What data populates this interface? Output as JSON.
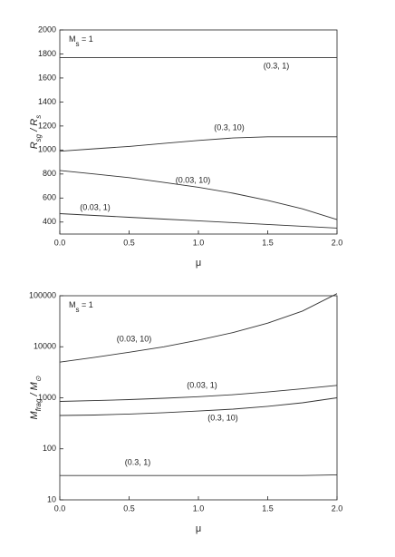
{
  "chart_data": [
    {
      "type": "line",
      "annotation": [
        {
          "text": "M",
          "sub": false
        },
        {
          "text": "s",
          "sub": true
        },
        {
          "text": " = 1",
          "sub": false
        }
      ],
      "ylabel": [
        {
          "text": "R",
          "sub": false
        },
        {
          "text": "sg",
          "sub": true
        },
        {
          "text": " / ",
          "sub": false
        },
        {
          "text": "R",
          "sub": false
        },
        {
          "text": "s",
          "sub": true
        }
      ],
      "xlabel": "μ",
      "x": [
        0,
        0.25,
        0.5,
        0.75,
        1.0,
        1.25,
        1.5,
        1.75,
        2.0
      ],
      "xlim": [
        0,
        2
      ],
      "xticks": [
        {
          "value": 0,
          "label": "0.0"
        },
        0.5,
        {
          "value": 1,
          "label": "1.0"
        },
        1.5,
        {
          "value": 2,
          "label": "2.0"
        }
      ],
      "ylim": [
        300,
        2000
      ],
      "yticks": [
        400,
        600,
        800,
        1000,
        1200,
        1400,
        1600,
        1800,
        2000
      ],
      "log_y": false,
      "series": [
        {
          "name": "(0.3, 1)",
          "color": "#333333",
          "values": [
            1770,
            1770,
            1770,
            1770,
            1770,
            1770,
            1770,
            1770,
            1770
          ]
        },
        {
          "name": "(0.3, 10)",
          "color": "#333333",
          "values": [
            990,
            1010,
            1030,
            1055,
            1080,
            1100,
            1110,
            1110,
            1110
          ]
        },
        {
          "name": "(0.03, 10)",
          "color": "#333333",
          "values": [
            830,
            800,
            770,
            730,
            690,
            640,
            580,
            510,
            420
          ]
        },
        {
          "name": "(0.03, 1)",
          "color": "#333333",
          "values": [
            470,
            455,
            440,
            425,
            410,
            395,
            380,
            365,
            350
          ]
        }
      ]
    },
    {
      "type": "line",
      "annotation": [
        {
          "text": "M",
          "sub": false
        },
        {
          "text": "s",
          "sub": true
        },
        {
          "text": " = 1",
          "sub": false
        }
      ],
      "ylabel": [
        {
          "text": "M",
          "sub": false
        },
        {
          "text": "frag",
          "sub": true
        },
        {
          "text": " / ",
          "sub": false
        },
        {
          "text": "M",
          "sub": false
        },
        {
          "text": "⊙",
          "sub": true
        }
      ],
      "xlabel": "μ",
      "x": [
        0,
        0.25,
        0.5,
        0.75,
        1.0,
        1.25,
        1.5,
        1.75,
        2.0
      ],
      "xlim": [
        0,
        2
      ],
      "xticks": [
        {
          "value": 0,
          "label": "0.0"
        },
        0.5,
        {
          "value": 1,
          "label": "1.0"
        },
        1.5,
        {
          "value": 2,
          "label": "2.0"
        }
      ],
      "ylim": [
        10,
        100000
      ],
      "yticks": [
        10,
        100,
        1000,
        10000,
        100000
      ],
      "log_y": true,
      "series": [
        {
          "name": "(0.03, 10)",
          "color": "#333333",
          "values": [
            5000,
            6200,
            7800,
            10000,
            13500,
            19000,
            29000,
            50000,
            110000
          ]
        },
        {
          "name": "(0.03, 1)",
          "color": "#333333",
          "values": [
            850,
            880,
            920,
            980,
            1050,
            1150,
            1300,
            1500,
            1750
          ]
        },
        {
          "name": "(0.3, 10)",
          "color": "#333333",
          "values": [
            450,
            460,
            480,
            510,
            550,
            600,
            680,
            800,
            1000
          ]
        },
        {
          "name": "(0.3, 1)",
          "color": "#333333",
          "values": [
            30,
            30,
            30,
            30,
            30,
            30,
            30,
            30,
            31
          ]
        }
      ]
    }
  ]
}
